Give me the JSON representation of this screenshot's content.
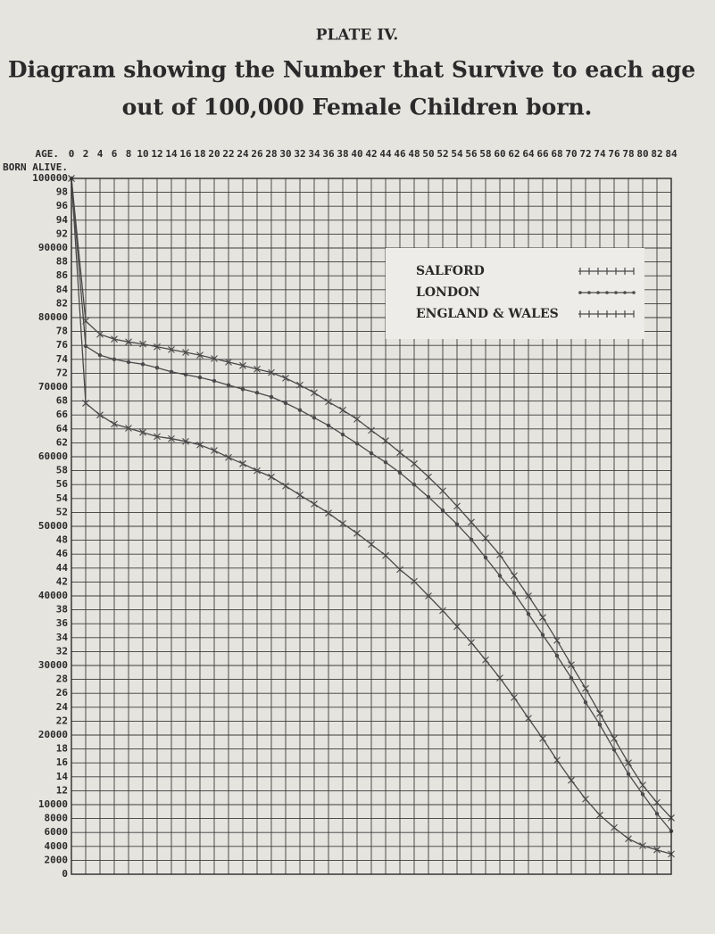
{
  "chart_data": {
    "type": "line",
    "plate": "PLATE IV.",
    "title": "Diagram showing the Number that Survive to each age",
    "subtitle": "out of 100,000 Female Children born.",
    "x_label": "AGE.",
    "y_label": "BORN ALIVE.",
    "x": [
      0,
      2,
      4,
      6,
      8,
      10,
      12,
      14,
      16,
      18,
      20,
      22,
      24,
      26,
      28,
      30,
      32,
      34,
      36,
      38,
      40,
      42,
      44,
      46,
      48,
      50,
      52,
      54,
      56,
      58,
      60,
      62,
      64,
      66,
      68,
      70,
      72,
      74,
      76,
      78,
      80,
      82,
      84
    ],
    "xlim": [
      0,
      84
    ],
    "xticks": [
      0,
      2,
      4,
      6,
      8,
      10,
      12,
      14,
      16,
      18,
      20,
      22,
      24,
      26,
      28,
      30,
      32,
      34,
      36,
      38,
      40,
      42,
      44,
      46,
      48,
      50,
      52,
      54,
      56,
      58,
      60,
      62,
      64,
      66,
      68,
      70,
      72,
      74,
      76,
      78,
      80,
      82,
      84
    ],
    "ylim": [
      0,
      100000
    ],
    "yticks": [
      0,
      2000,
      4000,
      6000,
      8000,
      10000,
      {
        "value": 12000,
        "label": "12"
      },
      {
        "value": 14000,
        "label": "14"
      },
      {
        "value": 16000,
        "label": "16"
      },
      {
        "value": 18000,
        "label": "18"
      },
      20000,
      {
        "value": 22000,
        "label": "22"
      },
      {
        "value": 24000,
        "label": "24"
      },
      {
        "value": 26000,
        "label": "26"
      },
      {
        "value": 28000,
        "label": "28"
      },
      30000,
      {
        "value": 32000,
        "label": "32"
      },
      {
        "value": 34000,
        "label": "34"
      },
      {
        "value": 36000,
        "label": "36"
      },
      {
        "value": 38000,
        "label": "38"
      },
      40000,
      {
        "value": 42000,
        "label": "42"
      },
      {
        "value": 44000,
        "label": "44"
      },
      {
        "value": 46000,
        "label": "46"
      },
      {
        "value": 48000,
        "label": "48"
      },
      50000,
      {
        "value": 52000,
        "label": "52"
      },
      {
        "value": 54000,
        "label": "54"
      },
      {
        "value": 56000,
        "label": "56"
      },
      {
        "value": 58000,
        "label": "58"
      },
      60000,
      {
        "value": 62000,
        "label": "62"
      },
      {
        "value": 64000,
        "label": "64"
      },
      {
        "value": 66000,
        "label": "66"
      },
      {
        "value": 68000,
        "label": "68"
      },
      70000,
      {
        "value": 72000,
        "label": "72"
      },
      {
        "value": 74000,
        "label": "74"
      },
      {
        "value": 76000,
        "label": "76"
      },
      {
        "value": 78000,
        "label": "78"
      },
      80000,
      {
        "value": 82000,
        "label": "82"
      },
      {
        "value": 84000,
        "label": "84"
      },
      {
        "value": 86000,
        "label": "86"
      },
      {
        "value": 88000,
        "label": "88"
      },
      90000,
      {
        "value": 92000,
        "label": "92"
      },
      {
        "value": 94000,
        "label": "94"
      },
      {
        "value": 96000,
        "label": "96"
      },
      {
        "value": 98000,
        "label": "98"
      },
      100000
    ],
    "grid": true,
    "legend": "upper right",
    "series": [
      {
        "name": "SALFORD",
        "color": "#4a4a4a",
        "marker": "cross",
        "values": [
          100000,
          67700,
          66000,
          64700,
          64100,
          63500,
          62900,
          62600,
          62200,
          61700,
          60900,
          59900,
          59000,
          58000,
          57100,
          55800,
          54500,
          53200,
          51900,
          50400,
          49000,
          47400,
          45800,
          43800,
          42100,
          40000,
          37900,
          35600,
          33300,
          30800,
          28200,
          25400,
          22400,
          19500,
          16400,
          13500,
          10800,
          8500,
          6700,
          5100,
          4100,
          3500,
          2900
        ]
      },
      {
        "name": "LONDON",
        "color": "#4a4a4a",
        "marker": "dot",
        "values": [
          100000,
          75900,
          74600,
          74000,
          73600,
          73300,
          72800,
          72200,
          71800,
          71400,
          70900,
          70300,
          69700,
          69200,
          68600,
          67700,
          66700,
          65600,
          64500,
          63200,
          61900,
          60500,
          59200,
          57700,
          56000,
          54200,
          52300,
          50300,
          48100,
          45500,
          42900,
          40400,
          37400,
          34400,
          31400,
          28200,
          24700,
          21500,
          17900,
          14400,
          11500,
          8700,
          6200
        ]
      },
      {
        "name": "ENGLAND & WALES",
        "color": "#4a4a4a",
        "marker": "cross",
        "values": [
          100000,
          79500,
          77600,
          76900,
          76500,
          76200,
          75800,
          75400,
          75000,
          74600,
          74100,
          73600,
          73100,
          72600,
          72100,
          71300,
          70300,
          69200,
          67900,
          66700,
          65400,
          63800,
          62300,
          60600,
          59000,
          57100,
          55100,
          52900,
          50600,
          48300,
          45900,
          42900,
          40000,
          36900,
          33600,
          30100,
          26700,
          23100,
          19500,
          16000,
          12800,
          10300,
          8100
        ]
      }
    ]
  }
}
